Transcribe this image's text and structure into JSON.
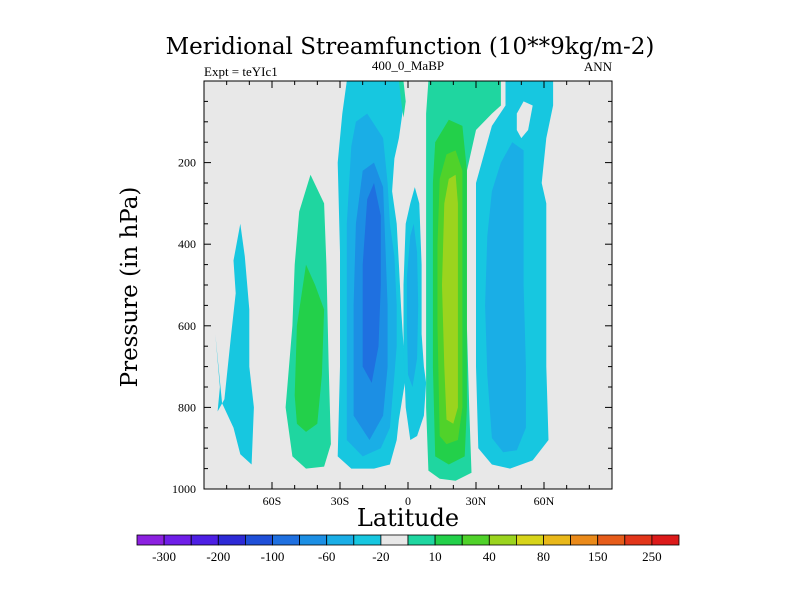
{
  "chart_data": {
    "type": "contour",
    "title": "Meridional Streamfunction (10**9kg/m-2)",
    "left_string": "Expt = teYIc1",
    "center_string": "400_0_MaBP",
    "right_string": "ANN",
    "xlabel": "Latitude",
    "ylabel": "Pressure (in hPa)",
    "xlim": [
      -90,
      90
    ],
    "ylim": [
      1000,
      0
    ],
    "x_ticks": [
      {
        "value": -60,
        "label": "60S"
      },
      {
        "value": -30,
        "label": "30S"
      },
      {
        "value": 0,
        "label": "0"
      },
      {
        "value": 30,
        "label": "30N"
      },
      {
        "value": 60,
        "label": "60N"
      }
    ],
    "y_ticks": [
      {
        "value": 200,
        "label": "200"
      },
      {
        "value": 400,
        "label": "400"
      },
      {
        "value": 600,
        "label": "600"
      },
      {
        "value": 800,
        "label": "800"
      },
      {
        "value": 1000,
        "label": "1000"
      }
    ],
    "background_color": "#e8e8e8",
    "colorbar": {
      "colors": [
        "#8c21e0",
        "#6f1ee8",
        "#4d1fe4",
        "#2d2ad6",
        "#1f4fd8",
        "#1f70e0",
        "#1c8fe4",
        "#1aaee6",
        "#17c7e0",
        "#e8e8e8",
        "#1fd6a0",
        "#23d04a",
        "#50d22a",
        "#9bd41e",
        "#d7d41a",
        "#e9b81a",
        "#ea8a1a",
        "#e65c1a",
        "#e2361a",
        "#dc1a1a"
      ],
      "labels": [
        "-300",
        "-200",
        "-100",
        "-60",
        "-20",
        "10",
        "40",
        "80",
        "150",
        "250"
      ]
    },
    "regions": [
      {
        "color": "#17c7e0",
        "points": [
          [
            -85,
            620
          ],
          [
            -83,
            750
          ],
          [
            -84,
            810
          ],
          [
            -81,
            780
          ],
          [
            -78,
            620
          ],
          [
            -76,
            520
          ],
          [
            -77,
            440
          ],
          [
            -74,
            350
          ],
          [
            -72,
            430
          ],
          [
            -70,
            560
          ],
          [
            -70,
            700
          ],
          [
            -68,
            800
          ],
          [
            -69,
            940
          ],
          [
            -74,
            915
          ],
          [
            -77,
            850
          ],
          [
            -82,
            790
          ]
        ]
      },
      {
        "color": "#1fd6a0",
        "points": [
          [
            -51,
            920
          ],
          [
            -54,
            800
          ],
          [
            -51,
            600
          ],
          [
            -50,
            450
          ],
          [
            -48,
            320
          ],
          [
            -43,
            230
          ],
          [
            -37,
            300
          ],
          [
            -36,
            450
          ],
          [
            -35,
            700
          ],
          [
            -34,
            890
          ],
          [
            -37,
            945
          ],
          [
            -45,
            950
          ]
        ]
      },
      {
        "color": "#23d04a",
        "points": [
          [
            -50,
            770
          ],
          [
            -49,
            600
          ],
          [
            -45,
            450
          ],
          [
            -41,
            500
          ],
          [
            -37,
            560
          ],
          [
            -38,
            720
          ],
          [
            -40,
            840
          ],
          [
            -45,
            860
          ],
          [
            -49,
            840
          ]
        ]
      },
      {
        "color": "#17c7e0",
        "points": [
          [
            -31,
            920
          ],
          [
            -30,
            700
          ],
          [
            -30,
            420
          ],
          [
            -31,
            200
          ],
          [
            -29,
            80
          ],
          [
            -27,
            0
          ],
          [
            -3,
            0
          ],
          [
            -2,
            60
          ],
          [
            -4,
            140
          ],
          [
            -6,
            190
          ],
          [
            -7,
            270
          ],
          [
            -5,
            350
          ],
          [
            -4,
            450
          ],
          [
            -3,
            560
          ],
          [
            -2,
            650
          ],
          [
            0,
            700
          ],
          [
            -2,
            760
          ],
          [
            -4,
            830
          ],
          [
            -5,
            880
          ],
          [
            -8,
            940
          ],
          [
            -15,
            950
          ],
          [
            -25,
            950
          ]
        ]
      },
      {
        "color": "#1aaee6",
        "points": [
          [
            -27,
            880
          ],
          [
            -27,
            600
          ],
          [
            -27,
            350
          ],
          [
            -25,
            160
          ],
          [
            -23,
            100
          ],
          [
            -18,
            80
          ],
          [
            -11,
            140
          ],
          [
            -9,
            250
          ],
          [
            -8,
            350
          ],
          [
            -6,
            430
          ],
          [
            -5,
            550
          ],
          [
            -5,
            650
          ],
          [
            -6,
            720
          ],
          [
            -8,
            850
          ],
          [
            -12,
            900
          ],
          [
            -20,
            920
          ]
        ]
      },
      {
        "color": "#1c8fe4",
        "points": [
          [
            -24,
            820
          ],
          [
            -24,
            550
          ],
          [
            -23,
            350
          ],
          [
            -20,
            220
          ],
          [
            -15,
            200
          ],
          [
            -11,
            260
          ],
          [
            -10,
            400
          ],
          [
            -9,
            550
          ],
          [
            -9,
            700
          ],
          [
            -11,
            820
          ],
          [
            -17,
            880
          ]
        ]
      },
      {
        "color": "#1f70e0",
        "points": [
          [
            -20,
            700
          ],
          [
            -20,
            450
          ],
          [
            -18,
            290
          ],
          [
            -15,
            250
          ],
          [
            -12,
            330
          ],
          [
            -12,
            500
          ],
          [
            -13,
            650
          ],
          [
            -16,
            740
          ]
        ]
      },
      {
        "color": "#17c7e0",
        "points": [
          [
            -1,
            350
          ],
          [
            1,
            300
          ],
          [
            3,
            260
          ],
          [
            5,
            300
          ],
          [
            6,
            450
          ],
          [
            6,
            620
          ],
          [
            7,
            700
          ],
          [
            8,
            740
          ],
          [
            7,
            820
          ],
          [
            4,
            870
          ],
          [
            1,
            880
          ],
          [
            -1,
            800
          ],
          [
            -2,
            650
          ],
          [
            -2,
            500
          ]
        ]
      },
      {
        "color": "#1aaee6",
        "points": [
          [
            -0.5,
            480
          ],
          [
            1,
            380
          ],
          [
            2.5,
            350
          ],
          [
            4,
            420
          ],
          [
            4.5,
            550
          ],
          [
            4,
            680
          ],
          [
            2,
            750
          ],
          [
            0,
            720
          ],
          [
            -0.5,
            600
          ]
        ]
      },
      {
        "color": "#1fd6a0",
        "points": [
          [
            -4,
            0
          ],
          [
            -2,
            0
          ],
          [
            -1,
            50
          ],
          [
            -2,
            90
          ],
          [
            -3,
            50
          ]
        ]
      },
      {
        "color": "#1fd6a0",
        "points": [
          [
            9,
            0
          ],
          [
            41,
            0
          ],
          [
            41,
            60
          ],
          [
            37,
            80
          ],
          [
            30,
            120
          ],
          [
            26,
            220
          ],
          [
            26,
            400
          ],
          [
            26,
            600
          ],
          [
            27,
            800
          ],
          [
            28,
            960
          ],
          [
            21,
            980
          ],
          [
            14,
            975
          ],
          [
            9,
            955
          ],
          [
            8,
            800
          ],
          [
            8,
            600
          ],
          [
            8,
            400
          ],
          [
            8,
            200
          ],
          [
            8,
            80
          ]
        ]
      },
      {
        "color": "#23d04a",
        "points": [
          [
            12,
            150
          ],
          [
            18,
            95
          ],
          [
            24,
            110
          ],
          [
            26,
            220
          ],
          [
            26,
            500
          ],
          [
            26,
            800
          ],
          [
            25,
            920
          ],
          [
            18,
            940
          ],
          [
            12,
            920
          ],
          [
            11,
            700
          ],
          [
            11,
            400
          ],
          [
            11,
            250
          ]
        ]
      },
      {
        "color": "#50d22a",
        "points": [
          [
            14,
            240
          ],
          [
            17,
            180
          ],
          [
            21,
            170
          ],
          [
            24,
            220
          ],
          [
            24,
            500
          ],
          [
            24,
            800
          ],
          [
            22,
            880
          ],
          [
            17,
            890
          ],
          [
            14,
            870
          ],
          [
            13,
            600
          ],
          [
            13,
            400
          ]
        ]
      },
      {
        "color": "#9bd41e",
        "points": [
          [
            16,
            300
          ],
          [
            18,
            240
          ],
          [
            21,
            230
          ],
          [
            22,
            300
          ],
          [
            22,
            500
          ],
          [
            22,
            800
          ],
          [
            20,
            840
          ],
          [
            17,
            830
          ],
          [
            16,
            700
          ],
          [
            15,
            500
          ]
        ]
      },
      {
        "color": "#17c7e0",
        "points": [
          [
            43,
            0
          ],
          [
            64,
            0
          ],
          [
            64,
            60
          ],
          [
            61,
            140
          ],
          [
            59,
            250
          ],
          [
            61,
            300
          ],
          [
            61,
            500
          ],
          [
            61,
            700
          ],
          [
            62,
            880
          ],
          [
            55,
            930
          ],
          [
            45,
            950
          ],
          [
            37,
            940
          ],
          [
            31,
            900
          ],
          [
            30,
            700
          ],
          [
            30,
            450
          ],
          [
            30,
            250
          ],
          [
            37,
            110
          ],
          [
            43,
            60
          ]
        ]
      },
      {
        "color": "#1aaee6",
        "points": [
          [
            35,
            720
          ],
          [
            34,
            550
          ],
          [
            35,
            380
          ],
          [
            37,
            270
          ],
          [
            41,
            200
          ],
          [
            46,
            150
          ],
          [
            51,
            170
          ],
          [
            51,
            300
          ],
          [
            51,
            500
          ],
          [
            52,
            700
          ],
          [
            52,
            850
          ],
          [
            48,
            905
          ],
          [
            42,
            910
          ],
          [
            37,
            875
          ]
        ]
      },
      {
        "color": "#e8e8e8",
        "points": [
          [
            48,
            80
          ],
          [
            51,
            50
          ],
          [
            55,
            60
          ],
          [
            53,
            120
          ],
          [
            50,
            140
          ],
          [
            48,
            120
          ]
        ]
      }
    ]
  }
}
